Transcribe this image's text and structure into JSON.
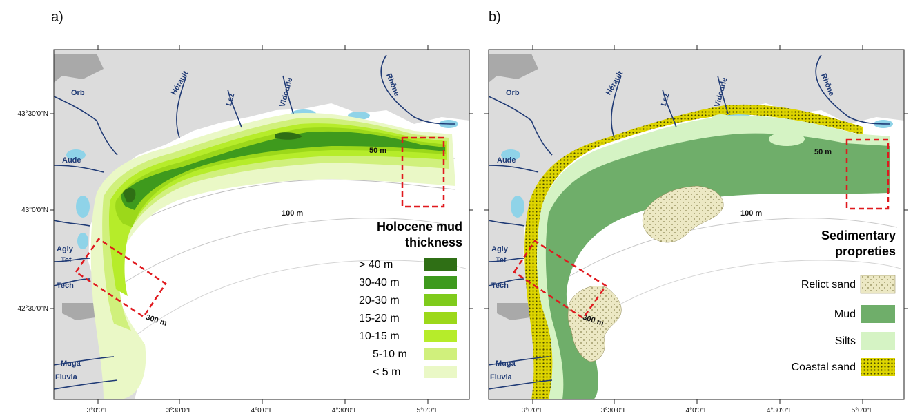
{
  "panels": [
    {
      "letter": "a)",
      "legend_title_lines": [
        "Holocene mud",
        "thickness"
      ],
      "legend": [
        {
          "label": "> 40 m",
          "color": "#2f6f15"
        },
        {
          "label": "30-40 m",
          "color": "#3e9a1d"
        },
        {
          "label": "20-30 m",
          "color": "#7fcb1c"
        },
        {
          "label": "15-20 m",
          "color": "#9cd81a"
        },
        {
          "label": "10-15 m",
          "color": "#b6ec2a"
        },
        {
          "label": "5-10 m",
          "color": "#d0f07c"
        },
        {
          "label": "< 5 m",
          "color": "#eaf8c6"
        }
      ]
    },
    {
      "letter": "b)",
      "legend_title_lines": [
        "Sedimentary",
        "propreties"
      ],
      "legend": [
        {
          "label": "Relict sand",
          "color": "#ece8c4"
        },
        {
          "label": "Mud",
          "color": "#6fae6a"
        },
        {
          "label": "Silts",
          "color": "#d5f3c4"
        },
        {
          "label": "Coastal sand",
          "color": "#ddd400"
        }
      ]
    }
  ],
  "rivers": [
    "Orb",
    "Hérault",
    "Lez",
    "Vidourle",
    "Rhône",
    "Aude",
    "Agly",
    "Tet",
    "Tech",
    "Muga",
    "Fluvia"
  ],
  "depth_labels": [
    "50 m",
    "100 m",
    "300 m"
  ],
  "lat_ticks": [
    "43°30'0\"N",
    "43°0'0\"N",
    "42°30'0\"N"
  ],
  "lon_ticks": [
    "3°0'0\"E",
    "3°30'0\"E",
    "4°0'0\"E",
    "4°30'0\"E",
    "5°0'0\"E"
  ],
  "colors": {
    "land": "#dcdcdc",
    "mountain": "#a9a9a9",
    "lagoon": "#8fd3e8",
    "river": "#1f3a75",
    "box": "#e0191e"
  }
}
